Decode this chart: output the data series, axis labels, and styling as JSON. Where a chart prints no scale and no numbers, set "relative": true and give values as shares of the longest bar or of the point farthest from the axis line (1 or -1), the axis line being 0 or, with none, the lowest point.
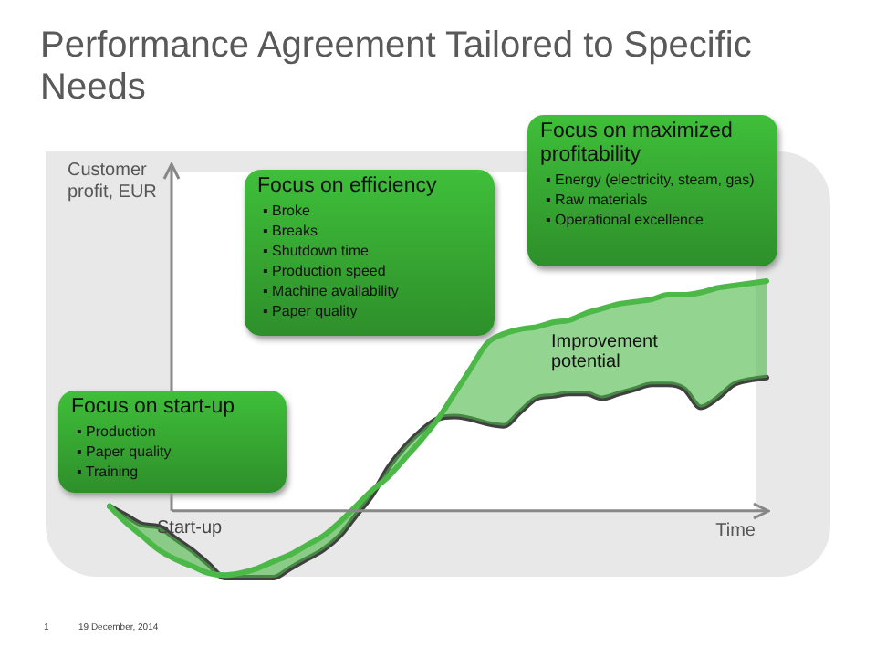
{
  "chart_data": {
    "type": "line",
    "title": "Performance Agreement Tailored to Specific Needs",
    "xlabel": "Time",
    "ylabel": "Customer profit, EUR",
    "relative": true,
    "legend": false,
    "marker": "none",
    "categories": [
      null,
      null,
      null,
      null,
      null,
      null,
      null,
      null,
      null,
      null,
      null,
      null,
      null,
      null,
      null,
      null,
      null,
      null,
      null,
      null,
      null,
      null,
      null,
      null,
      null,
      null,
      null,
      null,
      null,
      null,
      null,
      null,
      null,
      null,
      null,
      null,
      null,
      null,
      null,
      null,
      null
    ],
    "series": [
      {
        "color": "#4cb848",
        "values": [
          0.02,
          -0.05,
          -0.11,
          -0.17,
          -0.21,
          -0.24,
          -0.27,
          -0.28,
          -0.27,
          -0.25,
          -0.22,
          -0.19,
          -0.15,
          -0.11,
          -0.05,
          0.02,
          0.09,
          0.15,
          0.23,
          0.31,
          0.4,
          0.51,
          0.62,
          0.73,
          0.77,
          0.79,
          0.8,
          0.82,
          0.83,
          0.86,
          0.88,
          0.9,
          0.91,
          0.92,
          0.94,
          0.94,
          0.95,
          0.97,
          0.98,
          0.99,
          1
        ]
      },
      {
        "color": "#404040",
        "values": [
          0.02,
          -0.02,
          -0.06,
          -0.07,
          -0.12,
          -0.17,
          -0.23,
          -0.29,
          -0.29,
          -0.29,
          -0.29,
          -0.25,
          -0.21,
          -0.17,
          -0.11,
          -0.02,
          0.07,
          0.19,
          0.28,
          0.35,
          0.4,
          0.41,
          0.4,
          0.38,
          0.37,
          0.43,
          0.49,
          0.5,
          0.51,
          0.51,
          0.49,
          0.51,
          0.53,
          0.55,
          0.55,
          0.53,
          0.45,
          0.49,
          0.55,
          0.57,
          0.58
        ]
      }
    ],
    "annotations": [
      "Focus on start-up",
      "▪ Production",
      "▪ Paper quality",
      "▪ Training",
      "Focus on efficiency",
      "▪ Broke",
      "▪ Breaks",
      "▪ Shutdown time",
      "▪ Production speed",
      "▪ Machine availability",
      "▪ Paper quality",
      "Focus on maximized profitability",
      "▪ Energy (electricity, steam, gas)",
      "▪ Raw materials",
      "▪ Operational excellence",
      "Start-up",
      "Improvement potential",
      "1",
      "19 December, 2014"
    ]
  }
}
